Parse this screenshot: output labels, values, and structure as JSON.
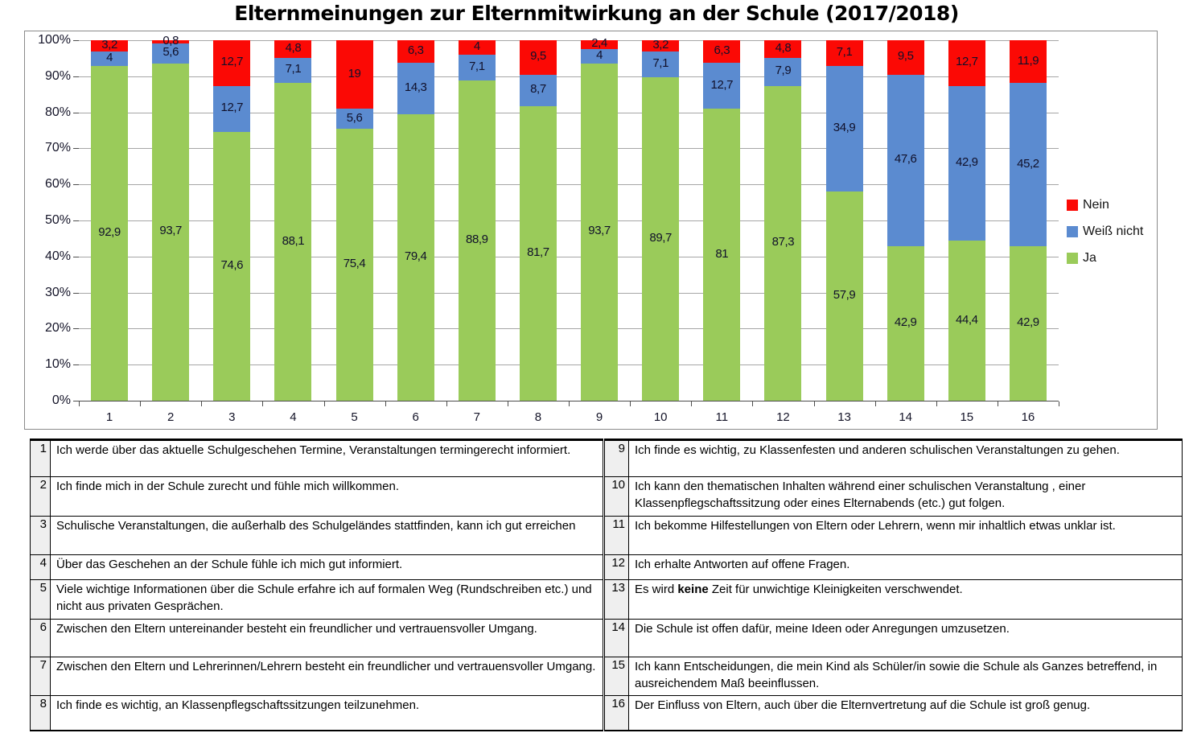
{
  "title": "Elternmeinungen zur Elternmitwirkung an der Schule (2017/2018)",
  "chart_data": {
    "type": "bar",
    "variant": "100%-stacked-column",
    "title": "Elternmeinungen zur Elternmitwirkung an der Schule (2017/2018)",
    "categories": [
      "1",
      "2",
      "3",
      "4",
      "5",
      "6",
      "7",
      "8",
      "9",
      "10",
      "11",
      "12",
      "13",
      "14",
      "15",
      "16"
    ],
    "y_ticks": [
      "0%",
      "10%",
      "20%",
      "30%",
      "40%",
      "50%",
      "60%",
      "70%",
      "80%",
      "90%",
      "100%"
    ],
    "ylim": [
      0,
      100
    ],
    "grid": "horizontal",
    "legend_position": "right",
    "series": [
      {
        "name": "Ja",
        "color": "#9ACB5A",
        "values": [
          92.9,
          93.7,
          74.6,
          88.1,
          75.4,
          79.4,
          88.9,
          81.7,
          93.7,
          89.7,
          81,
          87.3,
          57.9,
          42.9,
          44.4,
          42.9
        ],
        "labels": [
          "92,9",
          "93,7",
          "74,6",
          "88,1",
          "75,4",
          "79,4",
          "88,9",
          "81,7",
          "93,7",
          "89,7",
          "81",
          "87,3",
          "57,9",
          "42,9",
          "44,4",
          "42,9"
        ]
      },
      {
        "name": "Weiß nicht",
        "color": "#5B8BD0",
        "values": [
          4,
          5.6,
          12.7,
          7.1,
          5.6,
          14.3,
          7.1,
          8.7,
          4,
          7.1,
          12.7,
          7.9,
          34.9,
          47.6,
          42.9,
          45.2
        ],
        "labels": [
          "4",
          "5,6",
          "12,7",
          "7,1",
          "5,6",
          "14,3",
          "7,1",
          "8,7",
          "4",
          "7,1",
          "12,7",
          "7,9",
          "34,9",
          "47,6",
          "42,9",
          "45,2"
        ]
      },
      {
        "name": "Nein",
        "color": "#FB0905",
        "values": [
          3.2,
          0.8,
          12.7,
          4.8,
          19,
          6.3,
          4,
          9.5,
          2.4,
          3.2,
          6.3,
          4.8,
          7.1,
          9.5,
          12.7,
          11.9
        ],
        "labels": [
          "3,2",
          "0,8",
          "12,7",
          "4,8",
          "19",
          "6,3",
          "4",
          "9,5",
          "2,4",
          "3,2",
          "6,3",
          "4,8",
          "7,1",
          "9,5",
          "12,7",
          "11,9"
        ]
      }
    ],
    "legend": [
      {
        "label": "Nein",
        "color": "#FB0905"
      },
      {
        "label": "Weiß nicht",
        "color": "#5B8BD0"
      },
      {
        "label": "Ja",
        "color": "#9ACB5A"
      }
    ]
  },
  "table": {
    "left_rows": [
      {
        "num": "1",
        "parts": [
          {
            "t": "Ich werde über das aktuelle Schulgeschehen Termine, Veranstaltungen termingerecht informiert."
          }
        ]
      },
      {
        "num": "2",
        "parts": [
          {
            "t": "Ich finde mich in der Schule zurecht und fühle mich willkommen."
          }
        ]
      },
      {
        "num": "3",
        "parts": [
          {
            "t": "Schulische Veranstaltungen, die außerhalb des Schulgeländes stattfinden, kann ich gut erreichen"
          }
        ]
      },
      {
        "num": "4",
        "parts": [
          {
            "t": "Über das Geschehen an der Schule fühle ich mich gut informiert."
          }
        ]
      },
      {
        "num": "5",
        "parts": [
          {
            "t": "Viele wichtige Informationen über die Schule erfahre ich auf formalen Weg (Rundschreiben etc.) und nicht aus privaten Gesprächen."
          }
        ]
      },
      {
        "num": "6",
        "parts": [
          {
            "t": "Zwischen den Eltern untereinander besteht ein freundlicher und vertrauensvoller Umgang."
          }
        ]
      },
      {
        "num": "7",
        "parts": [
          {
            "t": "Zwischen den Eltern und Lehrerinnen/Lehrern besteht ein freundlicher und vertrauensvoller Umgang."
          }
        ]
      },
      {
        "num": "8",
        "parts": [
          {
            "t": "Ich finde es wichtig, an Klassenpflegschaftssitzungen teilzunehmen."
          }
        ]
      }
    ],
    "right_rows": [
      {
        "num": "9",
        "parts": [
          {
            "t": "Ich finde es wichtig, zu Klassenfesten und anderen schulischen Veranstaltungen zu gehen."
          }
        ]
      },
      {
        "num": "10",
        "parts": [
          {
            "t": "Ich kann den thematischen Inhalten während  einer schulischen Veranstaltung , einer Klassenpflegschaftssitzung oder eines Elternabends (etc.) gut folgen."
          }
        ]
      },
      {
        "num": "11",
        "parts": [
          {
            "t": "Ich bekomme Hilfestellungen von Eltern oder Lehrern, wenn mir inhaltlich etwas unklar ist."
          }
        ]
      },
      {
        "num": "12",
        "parts": [
          {
            "t": "Ich erhalte Antworten auf offene Fragen."
          }
        ]
      },
      {
        "num": "13",
        "parts": [
          {
            "t": "Es wird "
          },
          {
            "t": "keine",
            "b": true
          },
          {
            "t": " Zeit für unwichtige Kleinigkeiten verschwendet."
          }
        ]
      },
      {
        "num": "14",
        "parts": [
          {
            "t": "Die Schule ist offen dafür, meine Ideen oder Anregungen umzusetzen."
          }
        ]
      },
      {
        "num": "15",
        "parts": [
          {
            "t": "Ich kann Entscheidungen, die mein Kind als Schüler/in sowie die Schule als Ganzes betreffend, in ausreichendem Maß beeinflussen."
          }
        ]
      },
      {
        "num": "16",
        "parts": [
          {
            "t": "Der Einfluss von Eltern, auch über die Elternvertretung auf die Schule ist groß genug."
          }
        ]
      }
    ]
  }
}
